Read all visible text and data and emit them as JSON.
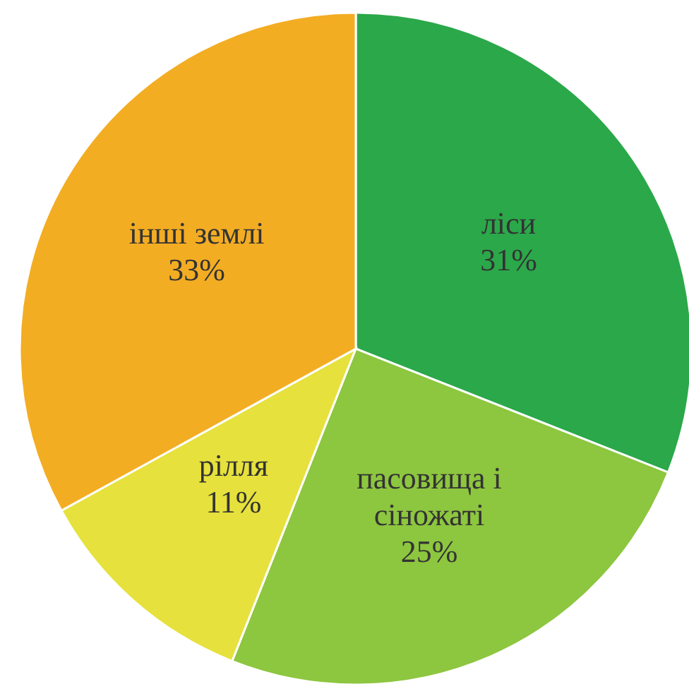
{
  "chart_data": {
    "type": "pie",
    "categories": [
      "ліси",
      "пасовища і сіножаті",
      "рілля",
      "інші землі"
    ],
    "values": [
      31,
      25,
      11,
      33
    ],
    "colors": [
      "#2ba84a",
      "#8dc63f",
      "#e6e13c",
      "#f3ad23"
    ],
    "value_labels": [
      "31%",
      "25%",
      "11%",
      "33%"
    ]
  }
}
